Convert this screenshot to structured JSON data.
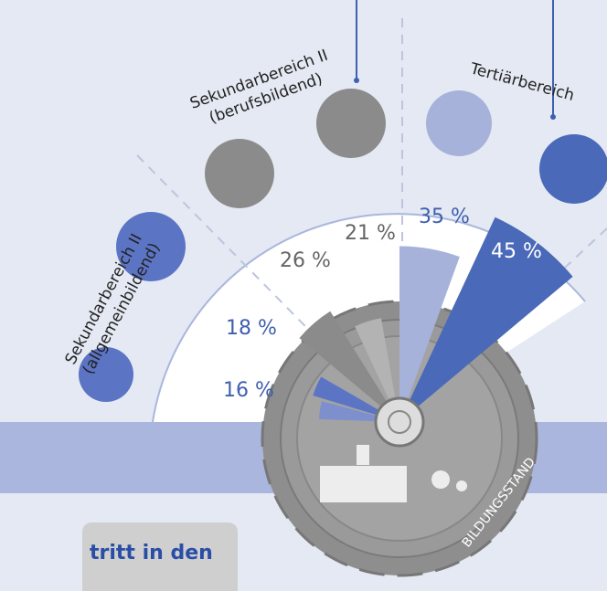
{
  "chart_data": {
    "type": "radial-bar",
    "categories": [
      [
        "Sekundarbereich II",
        "(allgemeinbildend)"
      ],
      [
        "Sekundarbereich II",
        "(berufsbildend)"
      ],
      [
        "Tertiärbereich"
      ]
    ],
    "series": [
      {
        "values": [
          16,
          26,
          35
        ],
        "value_labels": [
          "16 %",
          "26 %",
          "35 %"
        ],
        "colors": [
          "#7d8fcd",
          "#8b8b8b",
          "#a6b2da"
        ]
      },
      {
        "values": [
          18,
          21,
          45
        ],
        "value_labels": [
          "18 %",
          "21 %",
          "45 %"
        ],
        "colors": [
          "#5c74c4",
          "#b3b3b3",
          "#4a69b9"
        ]
      }
    ]
  },
  "annotations": {
    "gear_label": "BILDUNGSSTAND",
    "box_text": "tritt in den"
  }
}
